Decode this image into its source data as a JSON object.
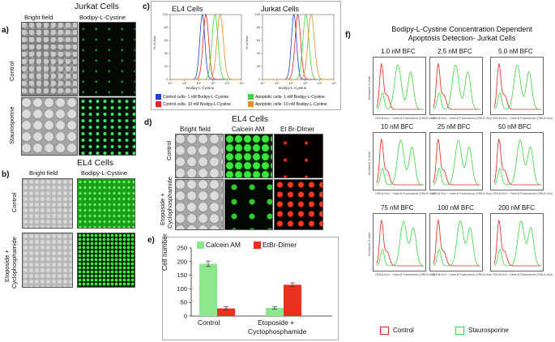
{
  "panels": {
    "a": {
      "label": "a)",
      "title": "Jurkat Cells",
      "col1": "Bright field",
      "col2": "Bodipy-L-Cystine",
      "row1": "Control",
      "row2": "Staurosporine"
    },
    "b": {
      "label": "b)",
      "title": "EL4 Cells",
      "col1": "Bright field",
      "col2": "Bodipy-L-Cystine",
      "row1": "Control",
      "row2a": "Etoposide +",
      "row2b": "Cyclophosphamide"
    },
    "c": {
      "label": "c)",
      "plot1_title": "EL4 Cells",
      "plot2_title": "Jurkat Cells",
      "xlabel": "Bodipy-L-Cystine",
      "ylabel": "% of Max",
      "yticks": [
        "0",
        "20",
        "40",
        "60",
        "80",
        "100"
      ],
      "xticks": [
        "10°",
        "10¹",
        "10²",
        "10³",
        "10⁴",
        "10⁵"
      ],
      "legend": [
        {
          "label": "Control cells- 1 nM Bodipy-L-Cystine",
          "color": "#1f3fd6"
        },
        {
          "label": "Control cells- 10 nM Bodipy-L-Cystine",
          "color": "#e0261c"
        },
        {
          "label": "Apoptotic cells- 1 nM Bodipy-L-Cystine",
          "color": "#3fd63f"
        },
        {
          "label": "Apoptotic cells- 10 nM Bodipy-L-Cystine",
          "color": "#f08a24"
        }
      ]
    },
    "d": {
      "label": "d)",
      "title": "EL4 Cells",
      "col1": "Bright field",
      "col2": "Calcein AM",
      "col3": "Et Br-DImer",
      "row1": "Control",
      "row2a": "Etoposide +",
      "row2b": "Cyclophosphamide"
    },
    "e": {
      "label": "e)",
      "ylabel": "Cell number",
      "cat1": "Control",
      "cat2a": "Etoposide +",
      "cat2b": "Cyclophosphamide",
      "legend1": "Calcein AM",
      "legend2": "EtBr-Dimer",
      "yticks": [
        "0",
        "50",
        "100",
        "150",
        "200",
        "250"
      ]
    },
    "f": {
      "label": "f)",
      "title1": "Bodipy-L-Cystine Concentration Dependent",
      "title2": "Apoptosis Detection- Jurkat Cells",
      "concentrations": [
        "1.0 nM BFC",
        "2.5 nM BFC",
        "5.0 nM BFC",
        "10 nM BFC",
        "25 nM BFC",
        "50 nM BFC",
        "75 nM BFC",
        "100 nM BFC",
        "200 nM BFC"
      ],
      "xaxis": "CRN-B-HLin :: Green-B Fluorescence (GRN-B-HLin)",
      "yaxis": "Normalized To Mode",
      "legend1": "Control",
      "legend2": "Staurosporine"
    }
  },
  "chart_data": [
    {
      "type": "bar",
      "categories": [
        "Control",
        "Etoposide + Cyclophosphamide"
      ],
      "series": [
        {
          "name": "Calcein AM",
          "values": [
            192,
            30
          ],
          "errors": [
            10,
            5
          ],
          "color": "#8ee68e"
        },
        {
          "name": "EtBr-Dimer",
          "values": [
            28,
            115
          ],
          "errors": [
            6,
            7
          ],
          "color": "#e8321e"
        }
      ],
      "ylabel": "Cell number",
      "ylim": [
        0,
        250
      ],
      "legend": "top"
    },
    {
      "type": "line",
      "title": "EL4 Cells",
      "xlabel": "Bodipy-L-Cystine",
      "ylabel": "% of Max",
      "xscale": "log",
      "xlim": [
        1,
        100000
      ],
      "ylim": [
        0,
        100
      ],
      "series": [
        {
          "name": "Control cells- 1 nM Bodipy-L-Cystine",
          "peak_x": 180,
          "color": "#1f3fd6"
        },
        {
          "name": "Control cells- 10 nM Bodipy-L-Cystine",
          "peak_x": 320,
          "color": "#e0261c"
        },
        {
          "name": "Apoptotic cells- 1 nM Bodipy-L-Cystine",
          "peak_x": 1400,
          "color": "#3fd63f"
        },
        {
          "name": "Apoptotic cells- 10 nM Bodipy-L-Cystine",
          "peak_x": 3200,
          "color": "#f08a24"
        }
      ]
    },
    {
      "type": "line",
      "title": "Jurkat Cells",
      "xlabel": "Bodipy-L-Cystine",
      "ylabel": "% of Max",
      "xscale": "log",
      "xlim": [
        1,
        100000
      ],
      "ylim": [
        0,
        100
      ],
      "series": [
        {
          "name": "Control cells- 1 nM Bodipy-L-Cystine",
          "peak_x": 160,
          "color": "#1f3fd6"
        },
        {
          "name": "Control cells- 10 nM Bodipy-L-Cystine",
          "peak_x": 300,
          "color": "#e0261c"
        },
        {
          "name": "Apoptotic cells- 1 nM Bodipy-L-Cystine",
          "peak_x": 1100,
          "color": "#3fd63f"
        },
        {
          "name": "Apoptotic cells- 10 nM Bodipy-L-Cystine",
          "peak_x": 2600,
          "color": "#f08a24"
        }
      ]
    }
  ]
}
